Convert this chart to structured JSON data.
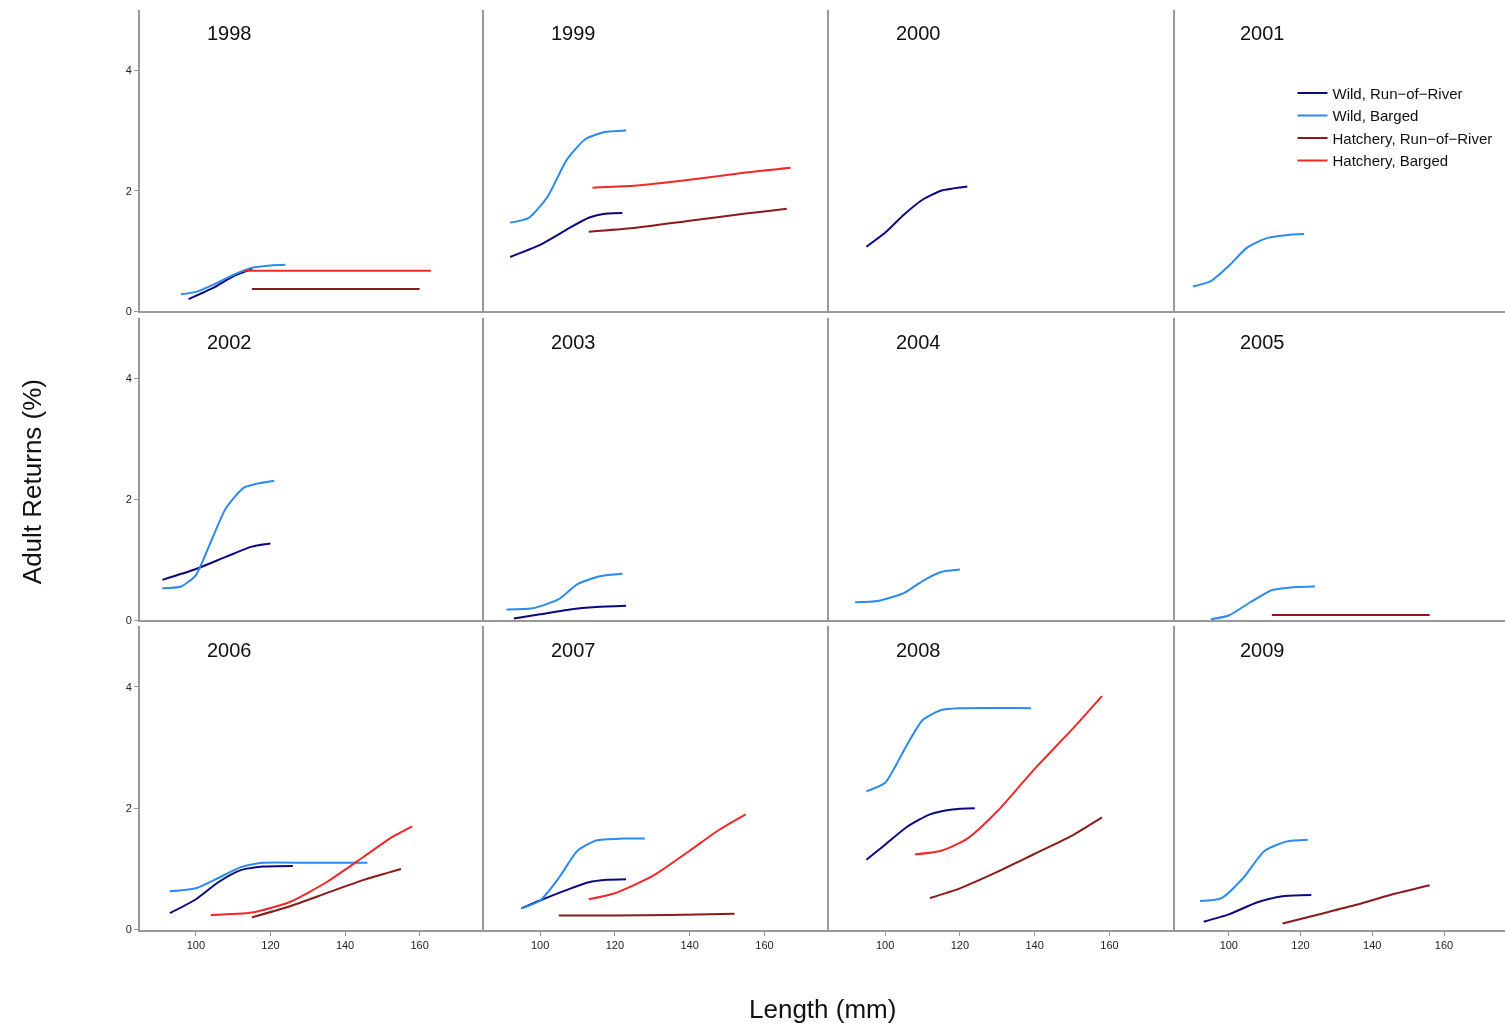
{
  "chart_data": [
    {
      "type": "line",
      "title": "1998",
      "legend": "top right",
      "xlim": [
        85,
        177
      ],
      "ylim": [
        0,
        5
      ],
      "xticks": [
        100,
        120,
        140,
        160
      ],
      "yticks": [
        0,
        2,
        4
      ],
      "tick_labels": "y",
      "series": [
        {
          "name": "Wild, Run−of−River",
          "color": "#0a0a80",
          "x": [
            98,
            105,
            110,
            115
          ],
          "values": [
            0.2,
            0.4,
            0.58,
            0.7
          ]
        },
        {
          "name": "Wild, Barged",
          "color": "#2b8af0",
          "x": [
            96,
            100,
            105,
            110,
            115,
            120,
            124
          ],
          "values": [
            0.28,
            0.32,
            0.45,
            0.6,
            0.72,
            0.76,
            0.77
          ]
        },
        {
          "name": "Hatchery, Run−of−River",
          "color": "#8b1a1a",
          "x": [
            115,
            130,
            145,
            160
          ],
          "values": [
            0.37,
            0.37,
            0.37,
            0.37
          ]
        },
        {
          "name": "Hatchery, Barged",
          "color": "#f02828",
          "x": [
            113,
            130,
            147,
            163
          ],
          "values": [
            0.67,
            0.67,
            0.67,
            0.67
          ]
        }
      ]
    },
    {
      "type": "line",
      "title": "1999",
      "xlim": [
        85,
        177
      ],
      "ylim": [
        0,
        5
      ],
      "xticks": [
        100,
        120,
        140,
        160
      ],
      "yticks": [
        0,
        2,
        4
      ],
      "tick_labels": false,
      "series": [
        {
          "name": "Wild, Run−of−River",
          "color": "#0a0a80",
          "x": [
            92,
            100,
            107,
            113,
            118,
            122
          ],
          "values": [
            0.9,
            1.1,
            1.35,
            1.55,
            1.62,
            1.63
          ]
        },
        {
          "name": "Wild, Barged",
          "color": "#2b8af0",
          "x": [
            92,
            97,
            102,
            107,
            112,
            117,
            123
          ],
          "values": [
            1.47,
            1.55,
            1.9,
            2.5,
            2.85,
            2.97,
            3.0
          ]
        },
        {
          "name": "Hatchery, Run−of−River",
          "color": "#8b1a1a",
          "x": [
            113,
            125,
            140,
            155,
            166
          ],
          "values": [
            1.32,
            1.38,
            1.5,
            1.62,
            1.7
          ]
        },
        {
          "name": "Hatchery, Barged",
          "color": "#f02828",
          "x": [
            114,
            125,
            140,
            155,
            167
          ],
          "values": [
            2.05,
            2.08,
            2.18,
            2.3,
            2.38
          ]
        }
      ]
    },
    {
      "type": "line",
      "title": "2000",
      "xlim": [
        85,
        177
      ],
      "ylim": [
        0,
        5
      ],
      "xticks": [
        100,
        120,
        140,
        160
      ],
      "yticks": [
        0,
        2,
        4
      ],
      "tick_labels": false,
      "series": [
        {
          "name": "Wild, Run−of−River",
          "color": "#0a0a80",
          "x": [
            95,
            100,
            105,
            110,
            115,
            122
          ],
          "values": [
            1.07,
            1.3,
            1.6,
            1.85,
            2.0,
            2.07
          ]
        }
      ]
    },
    {
      "type": "line",
      "title": "2001",
      "xlim": [
        85,
        177
      ],
      "ylim": [
        0,
        5
      ],
      "xticks": [
        100,
        120,
        140,
        160
      ],
      "yticks": [
        0,
        2,
        4
      ],
      "tick_labels": false,
      "series": [
        {
          "name": "Wild, Barged",
          "color": "#2b8af0",
          "x": [
            90,
            95,
            100,
            105,
            110,
            117,
            121
          ],
          "values": [
            0.41,
            0.5,
            0.75,
            1.05,
            1.2,
            1.27,
            1.28
          ]
        }
      ]
    },
    {
      "type": "line",
      "title": "2002",
      "ylabel": "Adult Returns (%)",
      "xlim": [
        85,
        177
      ],
      "ylim": [
        0,
        5
      ],
      "xticks": [
        100,
        120,
        140,
        160
      ],
      "yticks": [
        0,
        2,
        4
      ],
      "tick_labels": "y",
      "series": [
        {
          "name": "Wild, Run−of−River",
          "color": "#0a0a80",
          "x": [
            91,
            100,
            108,
            115,
            120
          ],
          "values": [
            0.67,
            0.85,
            1.05,
            1.22,
            1.27
          ]
        },
        {
          "name": "Wild, Barged",
          "color": "#2b8af0",
          "x": [
            91,
            96,
            100,
            104,
            108,
            113,
            121
          ],
          "values": [
            0.53,
            0.56,
            0.75,
            1.3,
            1.85,
            2.2,
            2.31
          ]
        }
      ]
    },
    {
      "type": "line",
      "title": "2003",
      "xlim": [
        85,
        177
      ],
      "ylim": [
        0,
        5
      ],
      "xticks": [
        100,
        120,
        140,
        160
      ],
      "yticks": [
        0,
        2,
        4
      ],
      "tick_labels": false,
      "series": [
        {
          "name": "Wild, Run−of−River",
          "color": "#0a0a80",
          "x": [
            93,
            100,
            108,
            115,
            123
          ],
          "values": [
            0.03,
            0.1,
            0.18,
            0.22,
            0.24
          ]
        },
        {
          "name": "Wild, Barged",
          "color": "#2b8af0",
          "x": [
            91,
            98,
            105,
            110,
            116,
            122
          ],
          "values": [
            0.18,
            0.2,
            0.35,
            0.6,
            0.73,
            0.77
          ]
        }
      ]
    },
    {
      "type": "line",
      "title": "2004",
      "xlim": [
        85,
        177
      ],
      "ylim": [
        0,
        5
      ],
      "xticks": [
        100,
        120,
        140,
        160
      ],
      "yticks": [
        0,
        2,
        4
      ],
      "tick_labels": false,
      "series": [
        {
          "name": "Wild, Barged",
          "color": "#2b8af0",
          "x": [
            92,
            98,
            105,
            110,
            115,
            120
          ],
          "values": [
            0.3,
            0.32,
            0.45,
            0.65,
            0.8,
            0.84
          ]
        }
      ]
    },
    {
      "type": "line",
      "title": "2005",
      "xlim": [
        85,
        177
      ],
      "ylim": [
        0,
        5
      ],
      "xticks": [
        100,
        120,
        140,
        160
      ],
      "yticks": [
        0,
        2,
        4
      ],
      "tick_labels": false,
      "series": [
        {
          "name": "Wild, Barged",
          "color": "#2b8af0",
          "x": [
            95,
            100,
            106,
            112,
            118,
            124
          ],
          "values": [
            0.02,
            0.08,
            0.3,
            0.5,
            0.55,
            0.56
          ]
        },
        {
          "name": "Hatchery, Run−of−River",
          "color": "#8b1a1a",
          "x": [
            112,
            127,
            142,
            156
          ],
          "values": [
            0.09,
            0.09,
            0.09,
            0.09
          ]
        }
      ]
    },
    {
      "type": "line",
      "title": "2006",
      "xlim": [
        85,
        177
      ],
      "ylim": [
        0,
        5
      ],
      "xticks": [
        100,
        120,
        140,
        160
      ],
      "yticks": [
        0,
        2,
        4
      ],
      "series": [
        {
          "name": "Wild, Run−of−River",
          "color": "#0a0a80",
          "x": [
            93,
            100,
            106,
            112,
            118,
            126
          ],
          "values": [
            0.27,
            0.5,
            0.78,
            0.98,
            1.04,
            1.05
          ]
        },
        {
          "name": "Wild, Barged",
          "color": "#2b8af0",
          "x": [
            93,
            100,
            106,
            112,
            118,
            130,
            146
          ],
          "values": [
            0.63,
            0.68,
            0.85,
            1.03,
            1.1,
            1.1,
            1.1
          ]
        },
        {
          "name": "Hatchery, Run−of−River",
          "color": "#8b1a1a",
          "x": [
            115,
            125,
            135,
            145,
            155
          ],
          "values": [
            0.2,
            0.38,
            0.6,
            0.82,
            1.0
          ]
        },
        {
          "name": "Hatchery, Barged",
          "color": "#f02828",
          "x": [
            104,
            115,
            125,
            135,
            145,
            152,
            158
          ],
          "values": [
            0.24,
            0.28,
            0.45,
            0.78,
            1.2,
            1.5,
            1.7
          ]
        }
      ]
    },
    {
      "type": "line",
      "title": "2007",
      "xlabel": "Length (mm)",
      "xlim": [
        85,
        177
      ],
      "ylim": [
        0,
        5
      ],
      "xticks": [
        100,
        120,
        140,
        160
      ],
      "yticks": [
        0,
        2,
        4
      ],
      "tick_labels": "x",
      "series": [
        {
          "name": "Wild, Run−of−River",
          "color": "#0a0a80",
          "x": [
            95,
            100,
            107,
            113,
            118,
            123
          ],
          "values": [
            0.35,
            0.48,
            0.65,
            0.78,
            0.82,
            0.83
          ]
        },
        {
          "name": "Wild, Barged",
          "color": "#2b8af0",
          "x": [
            95,
            100,
            105,
            110,
            115,
            122,
            128
          ],
          "values": [
            0.35,
            0.48,
            0.85,
            1.3,
            1.47,
            1.5,
            1.5
          ]
        },
        {
          "name": "Hatchery, Run−of−River",
          "color": "#8b1a1a",
          "x": [
            105,
            120,
            135,
            152
          ],
          "values": [
            0.23,
            0.23,
            0.24,
            0.26
          ]
        },
        {
          "name": "Hatchery, Barged",
          "color": "#f02828",
          "x": [
            113,
            120,
            130,
            140,
            148,
            155
          ],
          "values": [
            0.5,
            0.6,
            0.88,
            1.3,
            1.65,
            1.9
          ]
        }
      ]
    },
    {
      "type": "line",
      "title": "2008",
      "xlim": [
        85,
        177
      ],
      "ylim": [
        0,
        5
      ],
      "xticks": [
        100,
        120,
        140,
        160
      ],
      "yticks": [
        0,
        2,
        4
      ],
      "tick_labels": "x",
      "series": [
        {
          "name": "Wild, Run−of−River",
          "color": "#0a0a80",
          "x": [
            95,
            100,
            106,
            112,
            118,
            124
          ],
          "values": [
            1.15,
            1.4,
            1.7,
            1.9,
            1.98,
            2.0
          ]
        },
        {
          "name": "Wild, Barged",
          "color": "#2b8af0",
          "x": [
            95,
            100,
            105,
            110,
            115,
            120,
            139
          ],
          "values": [
            2.28,
            2.42,
            2.95,
            3.45,
            3.62,
            3.65,
            3.65
          ]
        },
        {
          "name": "Hatchery, Run−of−River",
          "color": "#8b1a1a",
          "x": [
            112,
            120,
            130,
            140,
            150,
            158
          ],
          "values": [
            0.52,
            0.68,
            0.95,
            1.25,
            1.55,
            1.85
          ]
        },
        {
          "name": "Hatchery, Barged",
          "color": "#f02828",
          "x": [
            108,
            115,
            122,
            130,
            140,
            150,
            158
          ],
          "values": [
            1.24,
            1.3,
            1.5,
            1.95,
            2.65,
            3.3,
            3.85
          ]
        }
      ]
    },
    {
      "type": "line",
      "title": "2009",
      "xlim": [
        85,
        177
      ],
      "ylim": [
        0,
        5
      ],
      "xticks": [
        100,
        120,
        140,
        160
      ],
      "yticks": [
        0,
        2,
        4
      ],
      "tick_labels": "x",
      "series": [
        {
          "name": "Wild, Run−of−River",
          "color": "#0a0a80",
          "x": [
            93,
            100,
            108,
            115,
            123
          ],
          "values": [
            0.13,
            0.25,
            0.45,
            0.55,
            0.57
          ]
        },
        {
          "name": "Wild, Barged",
          "color": "#2b8af0",
          "x": [
            92,
            98,
            104,
            110,
            116,
            122
          ],
          "values": [
            0.47,
            0.52,
            0.85,
            1.3,
            1.45,
            1.48
          ]
        },
        {
          "name": "Hatchery, Run−of−River",
          "color": "#8b1a1a",
          "x": [
            115,
            125,
            135,
            145,
            156
          ],
          "values": [
            0.1,
            0.25,
            0.4,
            0.57,
            0.73
          ]
        }
      ]
    }
  ]
}
